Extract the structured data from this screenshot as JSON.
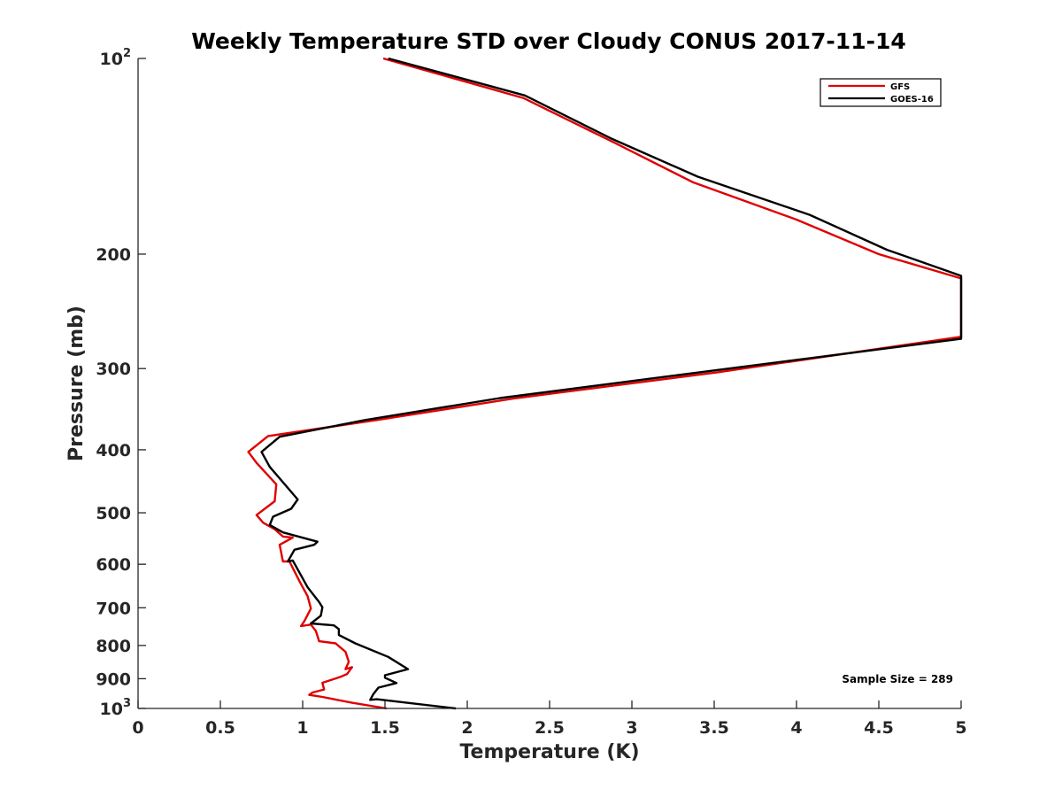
{
  "chart_data": {
    "type": "line",
    "title": "Weekly Temperature STD over Cloudy CONUS 2017-11-14",
    "xlabel": "Temperature (K)",
    "ylabel": "Pressure (mb)",
    "xlim": [
      0,
      5
    ],
    "ylim": [
      100,
      1000
    ],
    "y_scale": "log",
    "y_reversed": true,
    "grid": false,
    "legend_position": "top-right",
    "x_ticks": [
      "0",
      "0.5",
      "1",
      "1.5",
      "2",
      "2.5",
      "3",
      "3.5",
      "4",
      "4.5",
      "5"
    ],
    "y_ticks": [
      {
        "value": 100,
        "label": "10",
        "sup": "2"
      },
      {
        "value": 200,
        "label": "200",
        "sup": ""
      },
      {
        "value": 300,
        "label": "300",
        "sup": ""
      },
      {
        "value": 400,
        "label": "400",
        "sup": ""
      },
      {
        "value": 500,
        "label": "500",
        "sup": ""
      },
      {
        "value": 600,
        "label": "600",
        "sup": ""
      },
      {
        "value": 700,
        "label": "700",
        "sup": ""
      },
      {
        "value": 800,
        "label": "800",
        "sup": ""
      },
      {
        "value": 900,
        "label": "900",
        "sup": ""
      },
      {
        "value": 1000,
        "label": "10",
        "sup": "3"
      }
    ],
    "annotation": "Sample Size = 289",
    "series": [
      {
        "name": "GFS",
        "color": "#e00000",
        "points": [
          [
            1.49,
            100
          ],
          [
            2.34,
            115
          ],
          [
            2.9,
            135
          ],
          [
            3.37,
            155
          ],
          [
            4.0,
            177
          ],
          [
            4.5,
            200
          ],
          [
            5.0,
            218
          ],
          [
            5.0,
            268
          ],
          [
            3.52,
            304
          ],
          [
            2.3,
            333
          ],
          [
            1.45,
            360
          ],
          [
            0.79,
            381
          ],
          [
            0.67,
            403
          ],
          [
            0.72,
            419
          ],
          [
            0.84,
            452
          ],
          [
            0.83,
            480
          ],
          [
            0.72,
            504
          ],
          [
            0.76,
            518
          ],
          [
            0.83,
            530
          ],
          [
            0.88,
            544
          ],
          [
            0.94,
            546
          ],
          [
            0.86,
            560
          ],
          [
            0.88,
            594
          ],
          [
            0.92,
            594
          ],
          [
            0.98,
            637
          ],
          [
            1.03,
            672
          ],
          [
            1.05,
            702
          ],
          [
            1.01,
            734
          ],
          [
            0.99,
            747
          ],
          [
            1.05,
            743
          ],
          [
            1.08,
            760
          ],
          [
            1.1,
            788
          ],
          [
            1.2,
            794
          ],
          [
            1.26,
            818
          ],
          [
            1.28,
            848
          ],
          [
            1.26,
            870
          ],
          [
            1.3,
            864
          ],
          [
            1.27,
            885
          ],
          [
            1.23,
            894
          ],
          [
            1.12,
            913
          ],
          [
            1.13,
            935
          ],
          [
            1.06,
            945
          ],
          [
            1.04,
            953
          ],
          [
            1.12,
            960
          ],
          [
            1.3,
            980
          ],
          [
            1.51,
            1000
          ]
        ]
      },
      {
        "name": "GOES-16",
        "color": "#000000",
        "points": [
          [
            1.52,
            100
          ],
          [
            2.35,
            114
          ],
          [
            2.88,
            133
          ],
          [
            3.4,
            152
          ],
          [
            4.08,
            174
          ],
          [
            4.55,
            197
          ],
          [
            5.0,
            216
          ],
          [
            5.0,
            270
          ],
          [
            3.5,
            302
          ],
          [
            2.2,
            333
          ],
          [
            1.38,
            360
          ],
          [
            0.86,
            382
          ],
          [
            0.75,
            403
          ],
          [
            0.8,
            425
          ],
          [
            0.97,
            477
          ],
          [
            0.93,
            493
          ],
          [
            0.82,
            507
          ],
          [
            0.8,
            522
          ],
          [
            0.88,
            536
          ],
          [
            1.09,
            554
          ],
          [
            1.07,
            560
          ],
          [
            0.95,
            570
          ],
          [
            0.91,
            594
          ],
          [
            0.94,
            592
          ],
          [
            1.03,
            651
          ],
          [
            1.1,
            686
          ],
          [
            1.12,
            699
          ],
          [
            1.11,
            720
          ],
          [
            1.05,
            740
          ],
          [
            1.19,
            745
          ],
          [
            1.22,
            755
          ],
          [
            1.22,
            771
          ],
          [
            1.32,
            794
          ],
          [
            1.52,
            833
          ],
          [
            1.64,
            870
          ],
          [
            1.5,
            889
          ],
          [
            1.5,
            897
          ],
          [
            1.57,
            914
          ],
          [
            1.46,
            929
          ],
          [
            1.43,
            950
          ],
          [
            1.41,
            970
          ],
          [
            1.45,
            968
          ],
          [
            1.93,
            1000
          ]
        ]
      }
    ]
  }
}
